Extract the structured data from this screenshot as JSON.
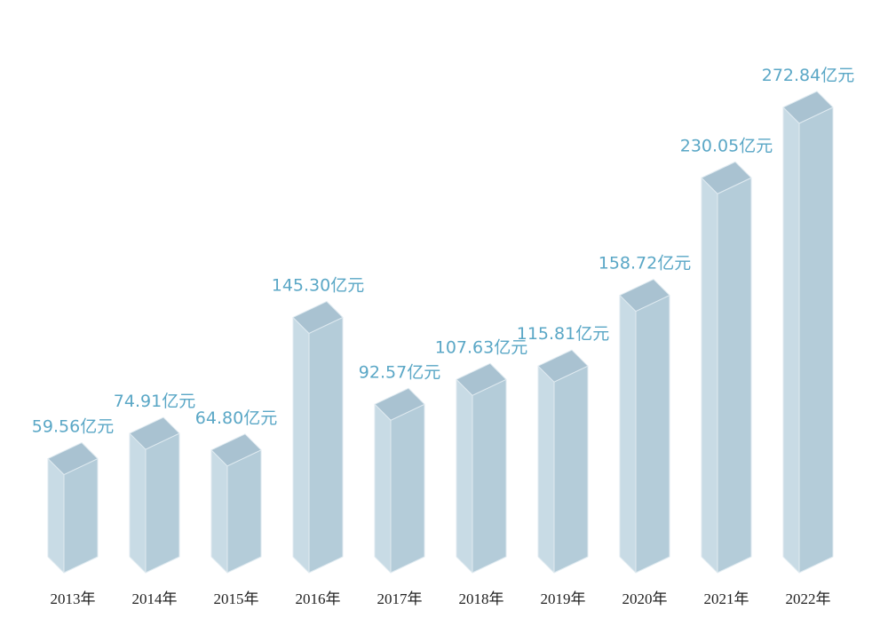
{
  "chart_data": {
    "type": "bar",
    "title": "",
    "xlabel": "",
    "ylabel": "",
    "categories": [
      "2013年",
      "2014年",
      "2015年",
      "2016年",
      "2017年",
      "2018年",
      "2019年",
      "2020年",
      "2021年",
      "2022年"
    ],
    "values": [
      59.56,
      74.91,
      64.8,
      145.3,
      92.57,
      107.63,
      115.81,
      158.72,
      230.05,
      272.84
    ],
    "value_labels": [
      "59.56亿元",
      "74.91亿元",
      "64.80亿元",
      "145.30亿元",
      "92.57亿元",
      "107.63亿元",
      "115.81亿元",
      "158.72亿元",
      "230.05亿元",
      "272.84亿元"
    ],
    "ylim": [
      0,
      280
    ],
    "grid": false,
    "legend": "none",
    "colors": {
      "front": "#b4ccd9",
      "side": "#c8dbe5",
      "top": "#a9c2d1",
      "edge": "#dfeaf0",
      "label": "#5aa7c6"
    }
  }
}
